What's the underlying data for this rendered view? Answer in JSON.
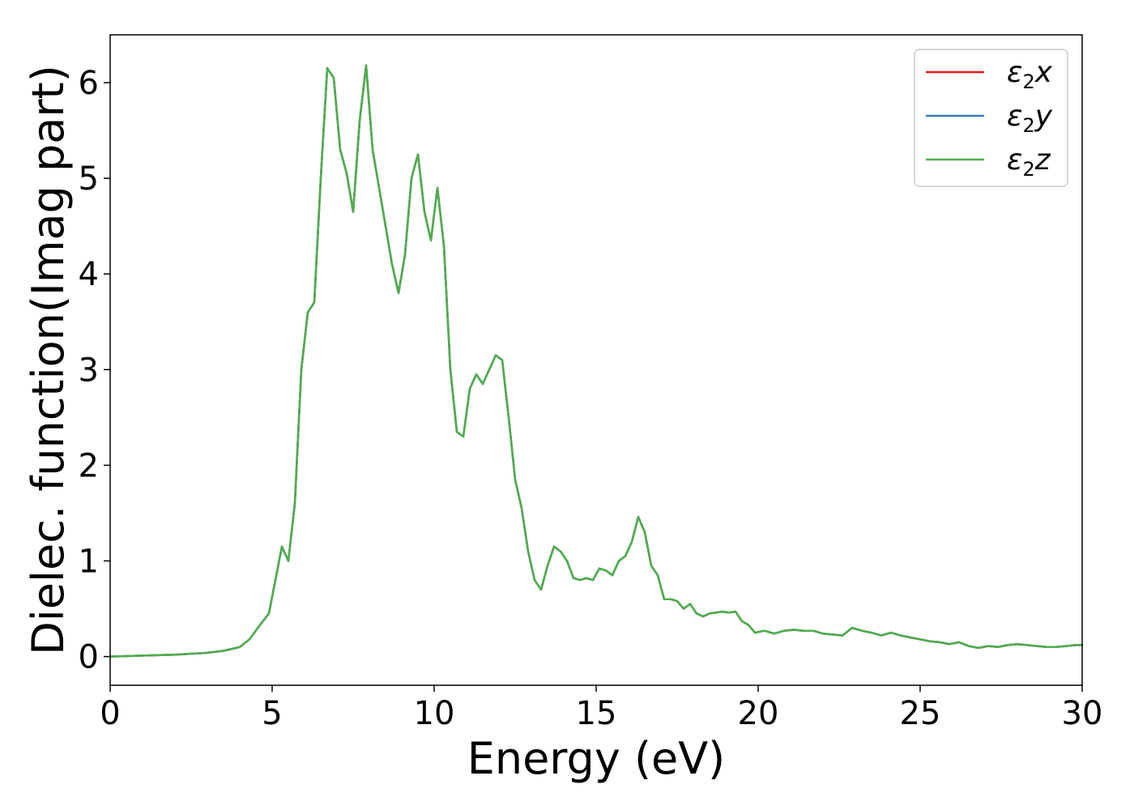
{
  "chart_data": {
    "type": "line",
    "xlabel": "Energy (eV)",
    "ylabel": "Dielec. function(Imag part)",
    "xlim": [
      0,
      30
    ],
    "ylim": [
      -0.3,
      6.5
    ],
    "xticks": [
      0,
      5,
      10,
      15,
      20,
      25,
      30
    ],
    "yticks": [
      0,
      1,
      2,
      3,
      4,
      5,
      6
    ],
    "grid": false,
    "legend_position": "top-right",
    "series": [
      {
        "name": "ε₂x",
        "legend_main": "ε",
        "legend_sub": "2",
        "legend_var": "x",
        "color": "#e41a1c"
      },
      {
        "name": "ε₂y",
        "legend_main": "ε",
        "legend_sub": "2",
        "legend_var": "y",
        "color": "#377eb8"
      },
      {
        "name": "ε₂z",
        "legend_main": "ε",
        "legend_sub": "2",
        "legend_var": "z",
        "color": "#4daf4a"
      }
    ],
    "x": [
      0,
      1,
      2,
      3,
      3.5,
      4,
      4.3,
      4.6,
      4.9,
      5.1,
      5.3,
      5.5,
      5.7,
      5.9,
      6.1,
      6.3,
      6.5,
      6.7,
      6.9,
      7.1,
      7.3,
      7.5,
      7.7,
      7.9,
      8.1,
      8.3,
      8.5,
      8.7,
      8.9,
      9.1,
      9.3,
      9.5,
      9.7,
      9.9,
      10.1,
      10.3,
      10.5,
      10.7,
      10.9,
      11.1,
      11.3,
      11.5,
      11.7,
      11.9,
      12.1,
      12.3,
      12.5,
      12.7,
      12.9,
      13.1,
      13.3,
      13.5,
      13.7,
      13.9,
      14.1,
      14.3,
      14.5,
      14.7,
      14.9,
      15.1,
      15.3,
      15.5,
      15.7,
      15.9,
      16.1,
      16.3,
      16.5,
      16.7,
      16.9,
      17.1,
      17.3,
      17.5,
      17.7,
      17.9,
      18.1,
      18.3,
      18.5,
      18.7,
      18.9,
      19.1,
      19.3,
      19.5,
      19.7,
      19.9,
      20.2,
      20.5,
      20.8,
      21.1,
      21.4,
      21.7,
      22.0,
      22.3,
      22.6,
      22.9,
      23.2,
      23.5,
      23.8,
      24.1,
      24.4,
      24.7,
      25.0,
      25.3,
      25.6,
      25.9,
      26.2,
      26.5,
      26.8,
      27.1,
      27.4,
      27.7,
      28.0,
      28.3,
      28.6,
      28.9,
      29.2,
      29.5,
      29.8,
      30.0
    ],
    "y": [
      0.0,
      0.01,
      0.02,
      0.04,
      0.06,
      0.1,
      0.18,
      0.32,
      0.45,
      0.8,
      1.15,
      1.0,
      1.6,
      3.0,
      3.6,
      3.7,
      5.0,
      6.15,
      6.05,
      5.3,
      5.05,
      4.65,
      5.6,
      6.18,
      5.3,
      4.9,
      4.5,
      4.1,
      3.8,
      4.2,
      5.0,
      5.25,
      4.65,
      4.35,
      4.9,
      4.3,
      3.0,
      2.35,
      2.3,
      2.8,
      2.95,
      2.85,
      3.0,
      3.15,
      3.1,
      2.5,
      1.85,
      1.55,
      1.1,
      0.8,
      0.7,
      0.95,
      1.15,
      1.1,
      1.0,
      0.82,
      0.8,
      0.82,
      0.8,
      0.92,
      0.9,
      0.85,
      1.0,
      1.05,
      1.2,
      1.46,
      1.3,
      0.95,
      0.85,
      0.6,
      0.6,
      0.58,
      0.5,
      0.55,
      0.45,
      0.42,
      0.45,
      0.46,
      0.47,
      0.46,
      0.47,
      0.37,
      0.33,
      0.25,
      0.27,
      0.24,
      0.27,
      0.28,
      0.27,
      0.27,
      0.24,
      0.23,
      0.22,
      0.3,
      0.27,
      0.25,
      0.22,
      0.25,
      0.22,
      0.2,
      0.18,
      0.16,
      0.15,
      0.13,
      0.15,
      0.11,
      0.09,
      0.11,
      0.1,
      0.12,
      0.13,
      0.12,
      0.11,
      0.1,
      0.1,
      0.11,
      0.12,
      0.12
    ]
  }
}
